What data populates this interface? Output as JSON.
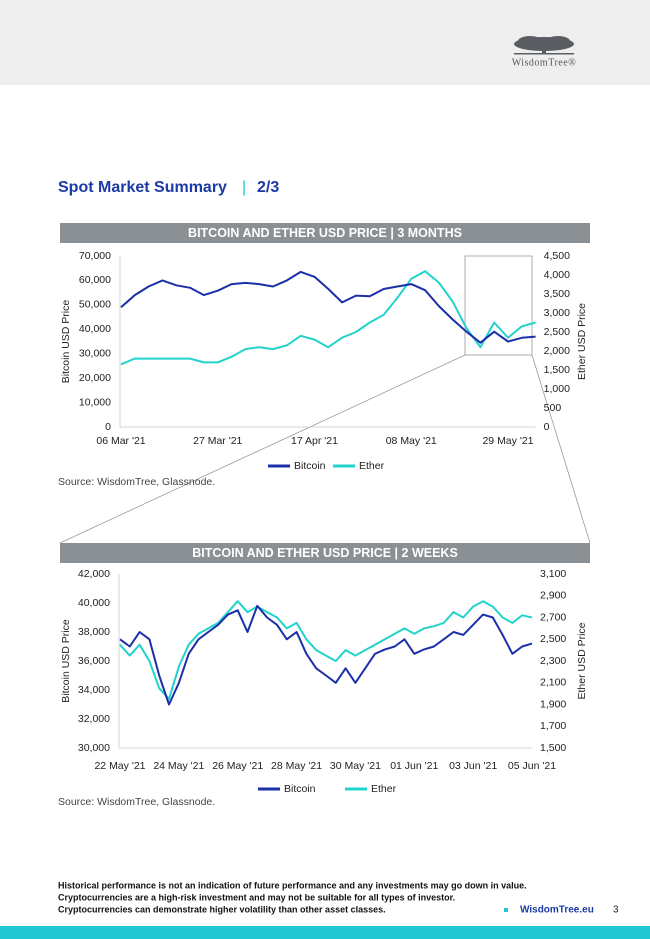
{
  "header": {
    "logo": "WisdomTree®"
  },
  "section": {
    "title": "Spot Market Summary",
    "separator": "|",
    "part": "2/3"
  },
  "chart_data": [
    {
      "type": "line",
      "title": "BITCOIN AND ETHER USD PRICE | 3 MONTHS",
      "ylabel": "Bitcoin USD Price",
      "y2label": "Ether USD Price",
      "categories": [
        "06 Mar '21",
        null,
        null,
        null,
        null,
        null,
        null,
        "27 Mar '21",
        null,
        null,
        null,
        null,
        null,
        null,
        "17 Apr '21",
        null,
        null,
        null,
        null,
        null,
        null,
        "08 May '21",
        null,
        null,
        null,
        null,
        null,
        null,
        "29 May '21",
        null,
        null
      ],
      "series": [
        {
          "name": "Bitcoin",
          "color": "#1b2fa8",
          "values": [
            49000,
            54000,
            57500,
            60000,
            58000,
            57000,
            54000,
            55800,
            58500,
            59000,
            58500,
            57500,
            60000,
            63500,
            61500,
            56500,
            51000,
            53800,
            53500,
            56500,
            57500,
            58500,
            56000,
            49500,
            44000,
            39000,
            34500,
            39000,
            35000,
            36500,
            37000
          ]
        },
        {
          "name": "Ether",
          "color": "#22d3cc",
          "axis": "y2",
          "values": [
            1650,
            1800,
            1800,
            1800,
            1800,
            1800,
            1700,
            1700,
            1850,
            2050,
            2100,
            2050,
            2150,
            2400,
            2300,
            2100,
            2350,
            2500,
            2750,
            2950,
            3400,
            3900,
            4100,
            3800,
            3300,
            2600,
            2100,
            2750,
            2350,
            2650,
            2750
          ]
        }
      ],
      "ylim": [
        0,
        70000
      ],
      "yticks": [
        0,
        {
          "value": 10000,
          "label": "10,000"
        },
        {
          "value": 20000,
          "label": "20,000"
        },
        {
          "value": 30000,
          "label": "30,000"
        },
        {
          "value": 40000,
          "label": "40,000"
        },
        {
          "value": 50000,
          "label": "50,000"
        },
        {
          "value": 60000,
          "label": "60,000"
        },
        {
          "value": 70000,
          "label": "70,000"
        }
      ],
      "y2lim": [
        0,
        4500
      ],
      "y2ticks": [
        0,
        500,
        {
          "value": 1000,
          "label": "1,000"
        },
        {
          "value": 1500,
          "label": "1,500"
        },
        {
          "value": 2000,
          "label": "2,000"
        },
        {
          "value": 2500,
          "label": "2,500"
        },
        {
          "value": 3000,
          "label": "3,000"
        },
        {
          "value": 3500,
          "label": "3,500"
        },
        {
          "value": 4000,
          "label": "4,000"
        },
        {
          "value": 4500,
          "label": "4,500"
        }
      ],
      "grid": false,
      "legend": "bottom",
      "source": "Source: WisdomTree, Glassnode."
    },
    {
      "type": "line",
      "title": "BITCOIN AND ETHER USD PRICE | 2 WEEKS",
      "ylabel": "Bitcoin USD Price",
      "y2label": "Ether USD Price",
      "categories": [
        "22 May '21",
        null,
        null,
        null,
        null,
        null,
        "24 May '21",
        null,
        null,
        null,
        null,
        null,
        "26 May '21",
        null,
        null,
        null,
        null,
        null,
        "28 May '21",
        null,
        null,
        null,
        null,
        null,
        "30 May '21",
        null,
        null,
        null,
        null,
        null,
        "01 Jun '21",
        null,
        null,
        null,
        null,
        null,
        "03 Jun '21",
        null,
        null,
        null,
        null,
        null,
        "05 Jun '21"
      ],
      "series": [
        {
          "name": "Bitcoin",
          "color": "#1b2fa8",
          "values": [
            37500,
            37000,
            38000,
            37500,
            35000,
            33000,
            34500,
            36500,
            37500,
            38000,
            38500,
            39200,
            39500,
            38000,
            39800,
            39000,
            38500,
            37500,
            38000,
            36500,
            35500,
            35000,
            34500,
            35500,
            34500,
            35500,
            36500,
            36800,
            37000,
            37500,
            36500,
            36800,
            37000,
            37500,
            38000,
            37800,
            38500,
            39200,
            39000,
            37800,
            36500,
            37000,
            37200
          ]
        },
        {
          "name": "Ether",
          "color": "#22d3cc",
          "axis": "y2",
          "values": [
            2450,
            2350,
            2450,
            2300,
            2050,
            1950,
            2250,
            2450,
            2550,
            2600,
            2650,
            2750,
            2850,
            2750,
            2800,
            2750,
            2700,
            2600,
            2650,
            2500,
            2400,
            2350,
            2300,
            2400,
            2350,
            2400,
            2450,
            2500,
            2550,
            2600,
            2550,
            2600,
            2620,
            2650,
            2750,
            2700,
            2800,
            2850,
            2800,
            2700,
            2650,
            2720,
            2700
          ]
        }
      ],
      "ylim": [
        30000,
        42000
      ],
      "yticks": [
        {
          "value": 30000,
          "label": "30,000"
        },
        {
          "value": 32000,
          "label": "32,000"
        },
        {
          "value": 34000,
          "label": "34,000"
        },
        {
          "value": 36000,
          "label": "36,000"
        },
        {
          "value": 38000,
          "label": "38,000"
        },
        {
          "value": 40000,
          "label": "40,000"
        },
        {
          "value": 42000,
          "label": "42,000"
        }
      ],
      "y2lim": [
        1500,
        3100
      ],
      "y2ticks": [
        {
          "value": 1500,
          "label": "1,500"
        },
        {
          "value": 1700,
          "label": "1,700"
        },
        {
          "value": 1900,
          "label": "1,900"
        },
        {
          "value": 2100,
          "label": "2,100"
        },
        {
          "value": 2300,
          "label": "2,300"
        },
        {
          "value": 2500,
          "label": "2,500"
        },
        {
          "value": 2700,
          "label": "2,700"
        },
        {
          "value": 2900,
          "label": "2,900"
        },
        {
          "value": 3100,
          "label": "3,100"
        }
      ],
      "grid": false,
      "legend": "bottom",
      "source": "Source: WisdomTree, Glassnode."
    }
  ],
  "footer": {
    "disclaimer": [
      "Historical performance is not an indication of future performance and any investments may go down in value.",
      "Cryptocurrencies are a high-risk investment and may not be suitable for all types of investor.",
      "Cryptocurrencies can demonstrate higher volatility than other asset classes."
    ],
    "website": "WisdomTree.eu",
    "page_number": 3
  }
}
